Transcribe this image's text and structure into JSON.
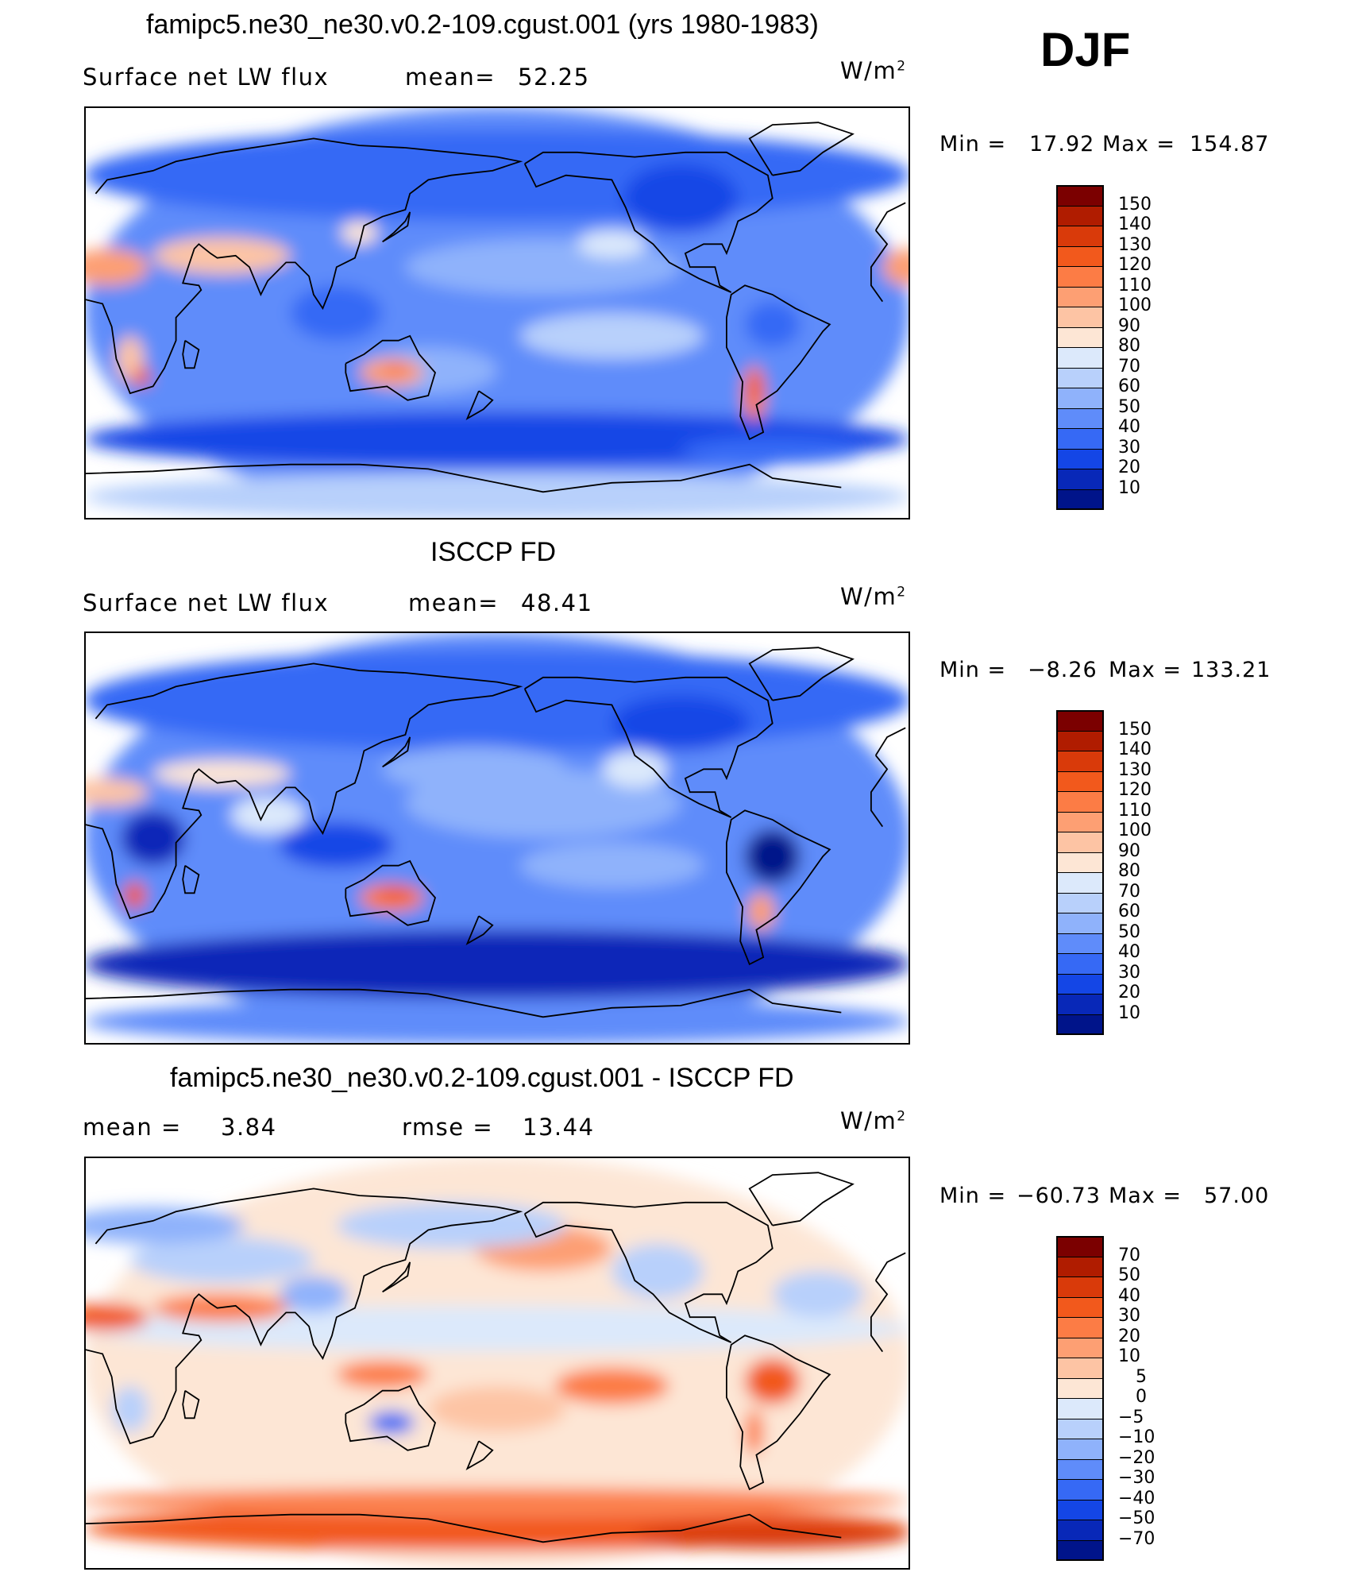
{
  "season": "DJF",
  "chart_data": [
    {
      "type": "heatmap",
      "title": "famipc5.ne30_ne30.v0.2-109.cgust.001 (yrs 1980-1983)",
      "left_label": "Surface net LW flux",
      "stat_label": "mean=",
      "stat_value": "52.25",
      "units": "W/m",
      "units_sup": "2",
      "min_label": "Min =",
      "min_value": "17.92",
      "max_label": "Max =",
      "max_value": "154.87",
      "colorbar": {
        "labels": [
          "150",
          "140",
          "130",
          "120",
          "110",
          "100",
          "90",
          "80",
          "70",
          "60",
          "50",
          "40",
          "30",
          "20",
          "10"
        ],
        "colors": [
          "#7b0000",
          "#b01c00",
          "#d93a0a",
          "#f2591c",
          "#fc7c45",
          "#fd9f73",
          "#fdc4a4",
          "#fde6d5",
          "#dce9fb",
          "#b8d0fb",
          "#8fb2fb",
          "#5f8cfa",
          "#3669f5",
          "#1446e6",
          "#0828b8",
          "#00148a"
        ]
      }
    },
    {
      "type": "heatmap",
      "title": "ISCCP FD",
      "left_label": "Surface net LW flux",
      "stat_label": "mean=",
      "stat_value": "48.41",
      "units": "W/m",
      "units_sup": "2",
      "min_label": "Min =",
      "min_value": "−8.26",
      "max_label": "Max =",
      "max_value": "133.21",
      "colorbar": {
        "labels": [
          "150",
          "140",
          "130",
          "120",
          "110",
          "100",
          "90",
          "80",
          "70",
          "60",
          "50",
          "40",
          "30",
          "20",
          "10"
        ],
        "colors": [
          "#7b0000",
          "#b01c00",
          "#d93a0a",
          "#f2591c",
          "#fc7c45",
          "#fd9f73",
          "#fdc4a4",
          "#fde6d5",
          "#dce9fb",
          "#b8d0fb",
          "#8fb2fb",
          "#5f8cfa",
          "#3669f5",
          "#1446e6",
          "#0828b8",
          "#00148a"
        ]
      }
    },
    {
      "type": "heatmap",
      "title": "famipc5.ne30_ne30.v0.2-109.cgust.001 - ISCCP FD",
      "left_label": "mean =",
      "stat_label": "",
      "stat_value": "3.84",
      "rmse_label": "rmse =",
      "rmse_value": "13.44",
      "units": "W/m",
      "units_sup": "2",
      "min_label": "Min =",
      "min_value": "−60.73",
      "max_label": "Max =",
      "max_value": "57.00",
      "colorbar": {
        "labels": [
          "70",
          "50",
          "40",
          "30",
          "20",
          "10",
          "5",
          "0",
          "−5",
          "−10",
          "−20",
          "−30",
          "−40",
          "−50",
          "−70"
        ],
        "colors": [
          "#7b0000",
          "#b01c00",
          "#d93a0a",
          "#f2591c",
          "#fc7c45",
          "#fd9f73",
          "#fdc4a4",
          "#fde6d5",
          "#dce9fb",
          "#b8d0fb",
          "#8fb2fb",
          "#5f8cfa",
          "#3669f5",
          "#1446e6",
          "#0828b8",
          "#00148a"
        ]
      }
    }
  ]
}
